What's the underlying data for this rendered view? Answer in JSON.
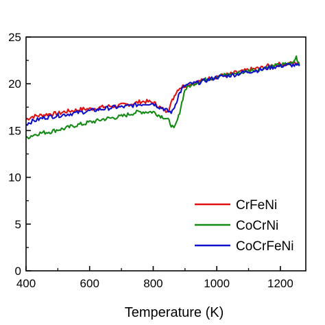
{
  "chart_data": {
    "type": "line",
    "title": "",
    "xlabel": "Temperature (K)",
    "ylabel": "",
    "xlim": [
      400,
      1280
    ],
    "ylim": [
      0,
      25
    ],
    "x_ticks": [
      400,
      600,
      800,
      1000,
      1200
    ],
    "y_ticks": [
      0,
      5,
      10,
      15,
      20,
      25
    ],
    "grid": false,
    "legend_position": "bottom-right",
    "series": [
      {
        "name": "CrFeNi",
        "color": "#e01010",
        "x": [
          400,
          420,
          440,
          460,
          480,
          500,
          520,
          540,
          560,
          580,
          600,
          620,
          640,
          660,
          680,
          700,
          720,
          740,
          760,
          780,
          800,
          810,
          820,
          830,
          840,
          850,
          860,
          870,
          880,
          890,
          900,
          920,
          940,
          960,
          980,
          1000,
          1020,
          1040,
          1060,
          1080,
          1100,
          1120,
          1140,
          1160,
          1180,
          1200,
          1220,
          1240,
          1260
        ],
        "y": [
          16.2,
          16.5,
          16.6,
          16.7,
          16.8,
          16.8,
          17.0,
          17.1,
          17.2,
          17.3,
          17.3,
          17.4,
          17.5,
          17.6,
          17.6,
          17.7,
          17.8,
          17.9,
          18.1,
          18.1,
          18.0,
          17.8,
          17.5,
          17.3,
          17.1,
          17.4,
          18.2,
          19.0,
          19.5,
          19.7,
          19.8,
          20.0,
          20.2,
          20.4,
          20.6,
          20.8,
          20.9,
          21.0,
          21.2,
          21.3,
          21.5,
          21.6,
          21.7,
          21.9,
          22.0,
          22.1,
          22.1,
          22.2,
          22.3
        ]
      },
      {
        "name": "CoCrNi",
        "color": "#138a13",
        "x": [
          400,
          420,
          440,
          460,
          480,
          500,
          520,
          540,
          560,
          580,
          600,
          620,
          640,
          660,
          680,
          700,
          720,
          740,
          760,
          780,
          800,
          810,
          820,
          830,
          840,
          850,
          860,
          865,
          870,
          880,
          890,
          900,
          920,
          940,
          960,
          980,
          1000,
          1020,
          1040,
          1060,
          1080,
          1100,
          1120,
          1140,
          1160,
          1180,
          1200,
          1220,
          1240,
          1250,
          1260
        ],
        "y": [
          14.2,
          14.5,
          14.7,
          14.8,
          14.9,
          15.1,
          15.2,
          15.4,
          15.6,
          15.7,
          15.9,
          16.0,
          16.2,
          16.3,
          16.4,
          16.5,
          16.7,
          16.9,
          17.0,
          17.0,
          17.0,
          16.8,
          16.6,
          16.5,
          16.3,
          16.0,
          15.4,
          15.1,
          15.5,
          16.5,
          18.0,
          19.4,
          19.9,
          20.2,
          20.4,
          20.6,
          20.8,
          20.9,
          21.0,
          21.1,
          21.2,
          21.4,
          21.5,
          21.6,
          21.8,
          21.9,
          22.0,
          22.1,
          22.2,
          22.9,
          22.0
        ]
      },
      {
        "name": "CoCrFeNi",
        "color": "#1010c8",
        "x": [
          400,
          420,
          440,
          460,
          480,
          500,
          520,
          540,
          560,
          580,
          600,
          620,
          640,
          660,
          680,
          700,
          720,
          740,
          760,
          780,
          800,
          810,
          820,
          830,
          840,
          850,
          860,
          870,
          880,
          890,
          900,
          920,
          940,
          960,
          980,
          1000,
          1020,
          1040,
          1060,
          1080,
          1100,
          1120,
          1140,
          1160,
          1180,
          1200,
          1220,
          1240,
          1260
        ],
        "y": [
          15.7,
          16.0,
          16.2,
          16.4,
          16.5,
          16.6,
          16.7,
          16.8,
          16.9,
          17.0,
          17.1,
          17.2,
          17.3,
          17.4,
          17.5,
          17.5,
          17.6,
          17.7,
          17.8,
          17.9,
          17.9,
          17.7,
          17.5,
          17.4,
          17.2,
          17.0,
          17.0,
          17.8,
          18.8,
          19.4,
          19.8,
          20.0,
          20.1,
          20.3,
          20.5,
          20.7,
          20.8,
          20.9,
          21.0,
          21.2,
          21.3,
          21.4,
          21.5,
          21.7,
          21.8,
          21.9,
          22.0,
          22.0,
          21.9
        ]
      }
    ]
  }
}
